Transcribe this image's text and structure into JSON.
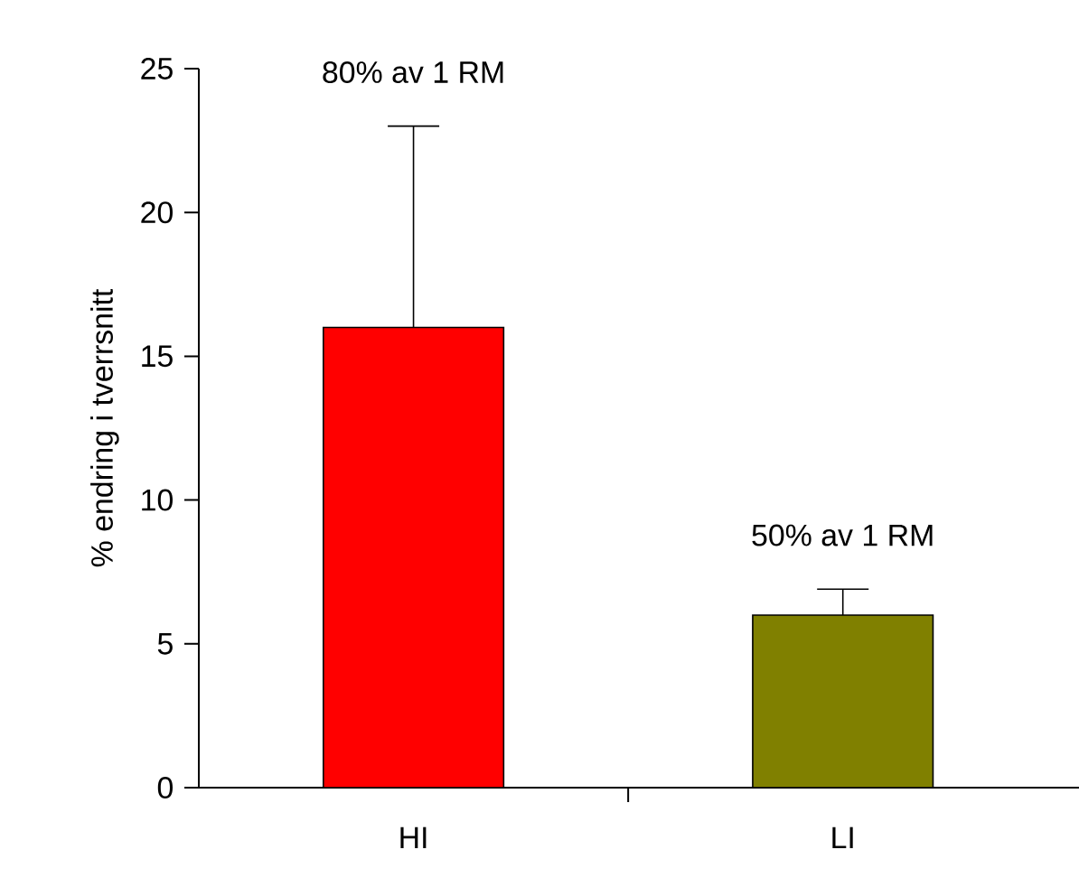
{
  "chart_data": {
    "type": "bar",
    "ylabel": "% endring i tverrsnitt",
    "categories": [
      "HI",
      "LI"
    ],
    "values": [
      16,
      6
    ],
    "colors": [
      "#ff0000",
      "#808000"
    ],
    "errors": [
      [
        16,
        23
      ],
      [
        6,
        6.9
      ]
    ],
    "annotations": [
      "80% av 1 RM",
      "50% av 1 RM"
    ],
    "ylim": [
      0,
      25
    ],
    "yticks": [
      0,
      5,
      10,
      15,
      20,
      25
    ],
    "grid": false
  }
}
